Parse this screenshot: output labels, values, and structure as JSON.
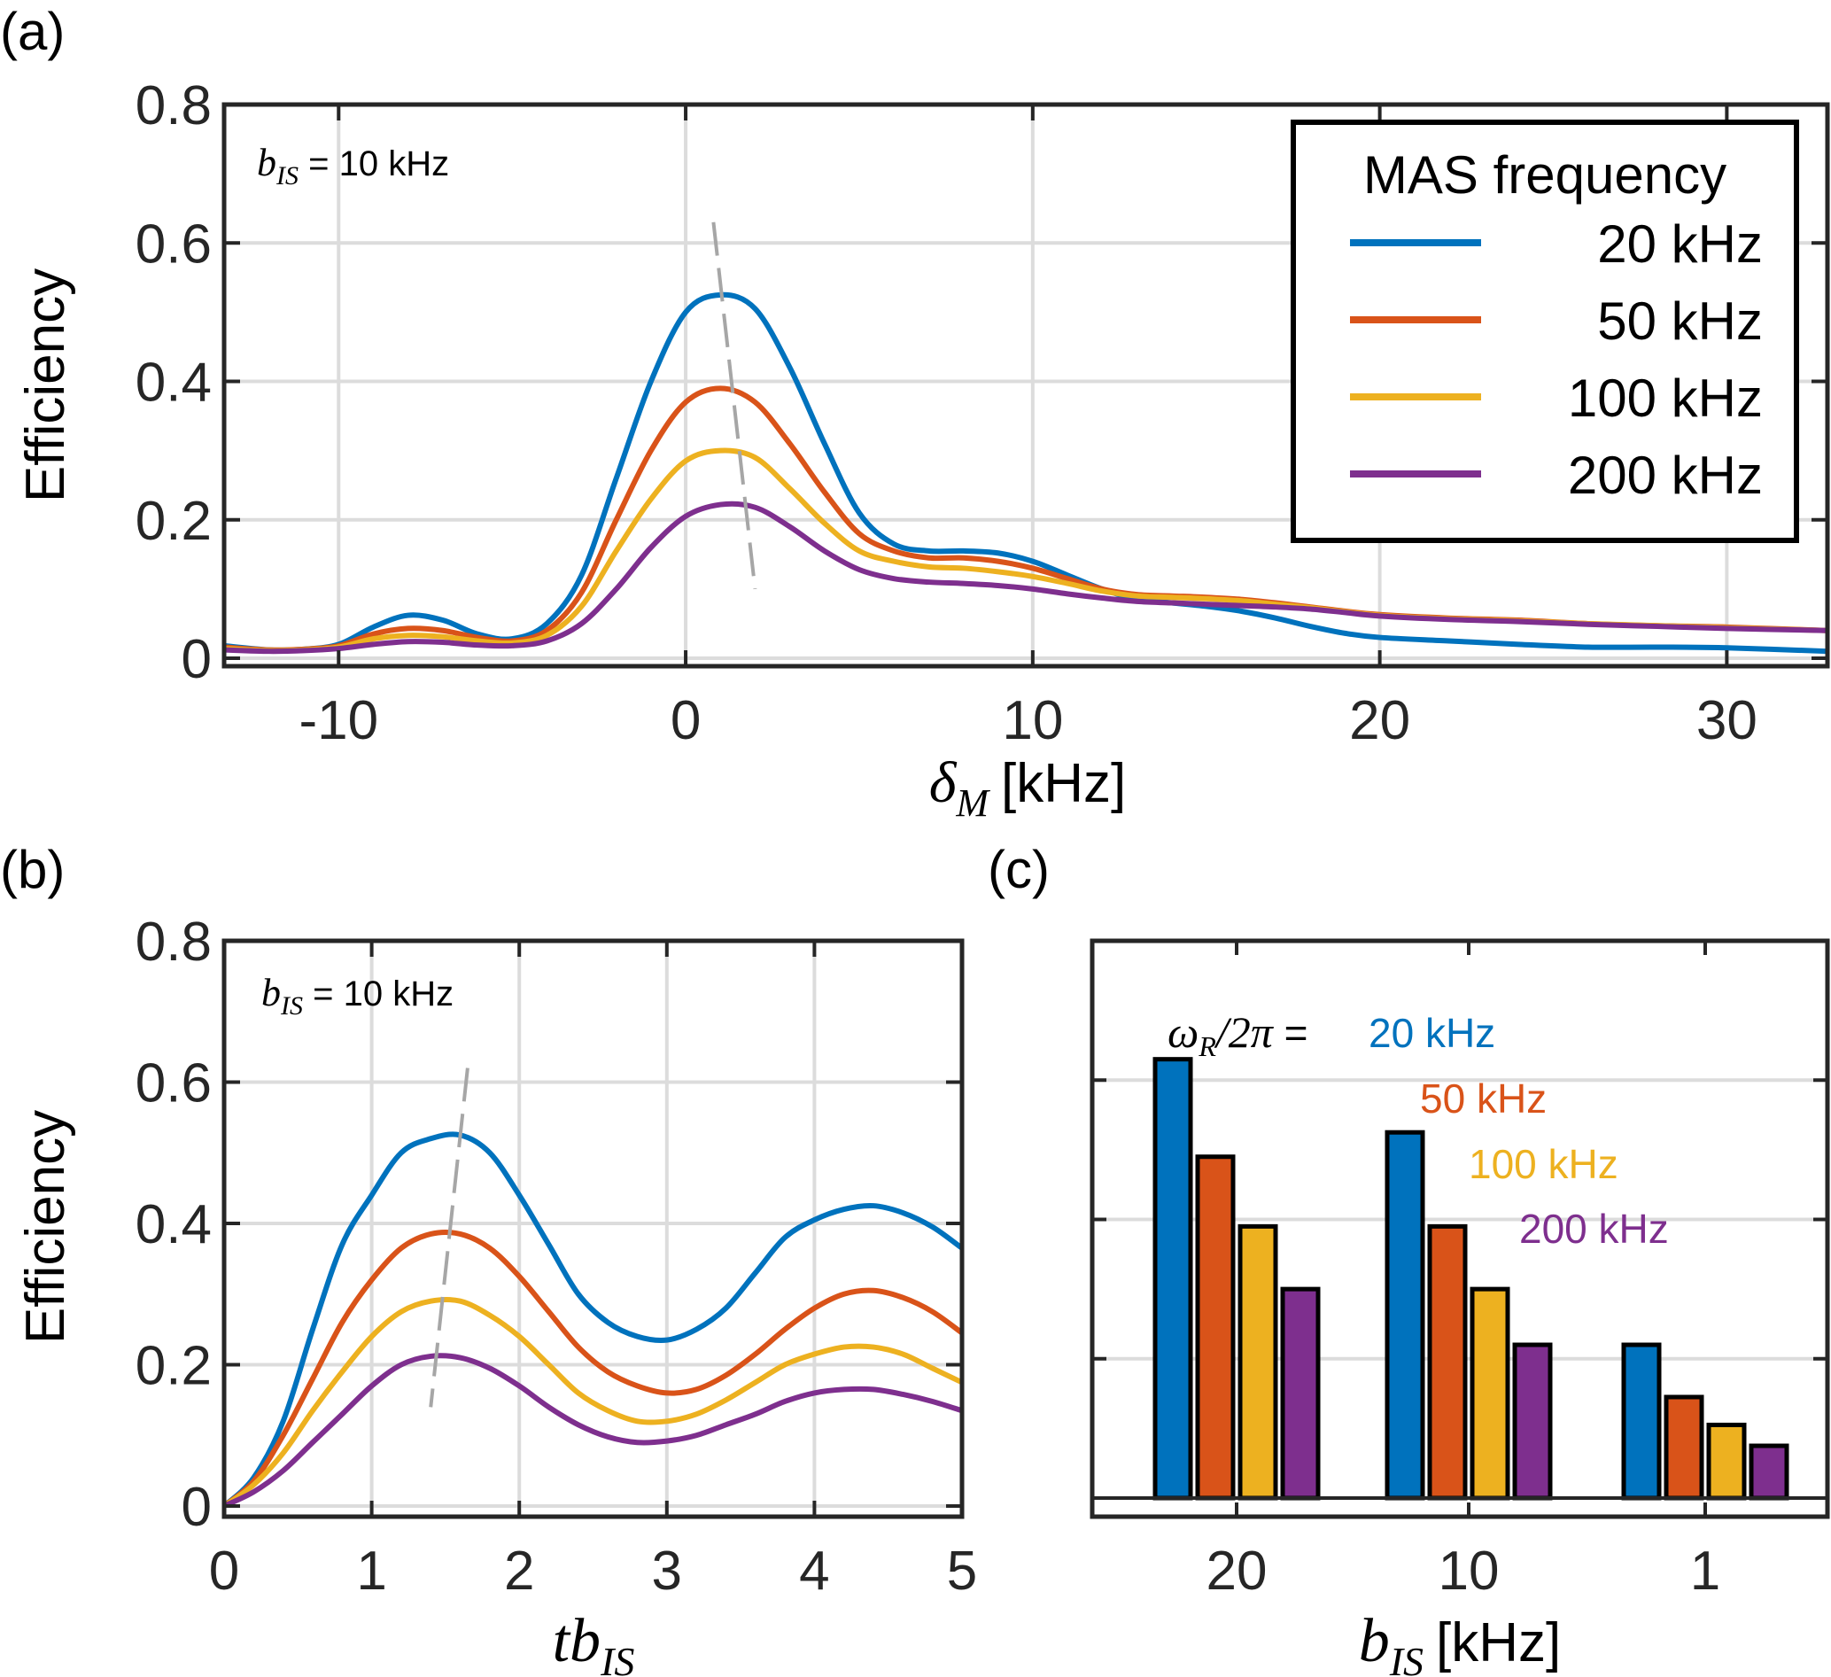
{
  "colors": {
    "20kHz": "#0072BD",
    "50kHz": "#D95319",
    "100kHz": "#EDB120",
    "200kHz": "#7E2F8E",
    "grid": "#dcdcdc",
    "axis": "#262626",
    "guide": "#a6a6a6"
  },
  "chart_data": [
    {
      "id": "a",
      "type": "line",
      "panel_label": "(a)",
      "title": "",
      "xlabel_math": "δ",
      "xlabel_sub": "M",
      "xlabel_unit": "[kHz]",
      "ylabel": "Efficiency",
      "xlim": [
        -13.3,
        32.9
      ],
      "ylim": [
        0,
        0.8
      ],
      "xticks": [
        -10,
        0,
        10,
        20,
        30
      ],
      "xtick_labels": [
        "-10",
        "0",
        "10",
        "20",
        "30"
      ],
      "yticks": [
        0,
        0.2,
        0.4,
        0.6,
        0.8
      ],
      "ytick_labels": [
        "0",
        "0.2",
        "0.4",
        "0.6",
        "0.8"
      ],
      "grid": true,
      "annotation": {
        "math": "b",
        "sub": "IS",
        "text": " = 10 kHz"
      },
      "guide_line": {
        "style": "dashed",
        "points": [
          [
            0.8,
            0.63
          ],
          [
            2.0,
            0.1
          ]
        ]
      },
      "legend": {
        "title": "MAS frequency",
        "placement": "top-right",
        "entries": [
          "20 kHz",
          "50 kHz",
          "100 kHz",
          "200 kHz"
        ]
      },
      "series": [
        {
          "name": "20 kHz",
          "color_key": "20kHz",
          "x": [
            -13.3,
            -12,
            -11,
            -10,
            -9,
            -8,
            -7,
            -6,
            -5,
            -4,
            -3,
            -2,
            -1,
            0,
            1,
            2,
            3,
            4,
            5,
            6,
            7,
            8,
            9,
            10,
            11,
            12,
            13,
            14,
            15,
            16,
            17,
            18,
            19,
            20,
            22,
            24,
            26,
            28,
            30,
            32.9
          ],
          "y": [
            0.018,
            0.012,
            0.013,
            0.02,
            0.045,
            0.062,
            0.055,
            0.035,
            0.028,
            0.05,
            0.12,
            0.26,
            0.4,
            0.5,
            0.525,
            0.505,
            0.42,
            0.31,
            0.21,
            0.165,
            0.155,
            0.155,
            0.152,
            0.14,
            0.12,
            0.1,
            0.085,
            0.08,
            0.075,
            0.068,
            0.058,
            0.046,
            0.036,
            0.03,
            0.025,
            0.02,
            0.016,
            0.016,
            0.015,
            0.01
          ]
        },
        {
          "name": "50 kHz",
          "color_key": "50kHz",
          "x": [
            -13.3,
            -12,
            -11,
            -10,
            -9,
            -8,
            -7,
            -6,
            -5,
            -4,
            -3,
            -2,
            -1,
            0,
            1,
            2,
            3,
            4,
            5,
            6,
            7,
            8,
            9,
            10,
            11,
            12,
            13,
            14,
            15,
            16,
            17,
            18,
            19,
            20,
            22,
            24,
            26,
            28,
            30,
            32.9
          ],
          "y": [
            0.016,
            0.012,
            0.013,
            0.018,
            0.035,
            0.043,
            0.04,
            0.03,
            0.025,
            0.04,
            0.095,
            0.2,
            0.3,
            0.37,
            0.39,
            0.37,
            0.31,
            0.24,
            0.18,
            0.155,
            0.145,
            0.145,
            0.14,
            0.13,
            0.115,
            0.1,
            0.092,
            0.09,
            0.088,
            0.085,
            0.08,
            0.074,
            0.068,
            0.063,
            0.058,
            0.055,
            0.05,
            0.047,
            0.045,
            0.04
          ]
        },
        {
          "name": "100 kHz",
          "color_key": "100kHz",
          "x": [
            -13.3,
            -12,
            -11,
            -10,
            -9,
            -8,
            -7,
            -6,
            -5,
            -4,
            -3,
            -2,
            -1,
            0,
            1,
            2,
            3,
            4,
            5,
            6,
            7,
            8,
            9,
            10,
            11,
            12,
            13,
            14,
            15,
            16,
            17,
            18,
            19,
            20,
            22,
            24,
            26,
            28,
            30,
            32.9
          ],
          "y": [
            0.014,
            0.011,
            0.012,
            0.016,
            0.028,
            0.033,
            0.031,
            0.025,
            0.022,
            0.033,
            0.075,
            0.155,
            0.23,
            0.285,
            0.3,
            0.29,
            0.245,
            0.195,
            0.155,
            0.14,
            0.132,
            0.13,
            0.125,
            0.118,
            0.108,
            0.097,
            0.09,
            0.088,
            0.086,
            0.083,
            0.078,
            0.073,
            0.067,
            0.062,
            0.057,
            0.054,
            0.05,
            0.047,
            0.044,
            0.04
          ]
        },
        {
          "name": "200 kHz",
          "color_key": "200kHz",
          "x": [
            -13.3,
            -12,
            -11,
            -10,
            -9,
            -8,
            -7,
            -6,
            -5,
            -4,
            -3,
            -2,
            -1,
            0,
            1,
            2,
            3,
            4,
            5,
            6,
            7,
            8,
            9,
            10,
            11,
            12,
            13,
            14,
            15,
            16,
            17,
            18,
            19,
            20,
            22,
            24,
            26,
            28,
            30,
            32.9
          ],
          "y": [
            0.012,
            0.01,
            0.011,
            0.014,
            0.02,
            0.024,
            0.023,
            0.019,
            0.018,
            0.025,
            0.05,
            0.1,
            0.16,
            0.205,
            0.222,
            0.218,
            0.19,
            0.155,
            0.128,
            0.115,
            0.11,
            0.108,
            0.105,
            0.1,
            0.093,
            0.087,
            0.082,
            0.08,
            0.078,
            0.076,
            0.074,
            0.071,
            0.066,
            0.061,
            0.056,
            0.053,
            0.049,
            0.046,
            0.043,
            0.04
          ]
        }
      ]
    },
    {
      "id": "b",
      "type": "line",
      "panel_label": "(b)",
      "title": "",
      "xlabel_math": "tb",
      "xlabel_sub": "IS",
      "ylabel": "Efficiency",
      "xlim": [
        0,
        5
      ],
      "ylim": [
        0,
        0.8
      ],
      "xticks": [
        0,
        1,
        2,
        3,
        4,
        5
      ],
      "xtick_labels": [
        "0",
        "1",
        "2",
        "3",
        "4",
        "5"
      ],
      "yticks": [
        0,
        0.2,
        0.4,
        0.6,
        0.8
      ],
      "ytick_labels": [
        "0",
        "0.2",
        "0.4",
        "0.6",
        "0.8"
      ],
      "grid": true,
      "annotation": {
        "math": "b",
        "sub": "IS",
        "text": " = 10 kHz"
      },
      "guide_line": {
        "style": "dashed",
        "points": [
          [
            1.65,
            0.62
          ],
          [
            1.4,
            0.14
          ]
        ]
      },
      "series": [
        {
          "name": "20 kHz",
          "color_key": "20kHz",
          "x": [
            0,
            0.2,
            0.4,
            0.6,
            0.8,
            1.0,
            1.2,
            1.4,
            1.6,
            1.8,
            2.0,
            2.2,
            2.4,
            2.6,
            2.8,
            3.0,
            3.2,
            3.4,
            3.6,
            3.8,
            4.0,
            4.2,
            4.4,
            4.6,
            4.8,
            5.0
          ],
          "y": [
            0,
            0.04,
            0.12,
            0.25,
            0.37,
            0.44,
            0.5,
            0.52,
            0.525,
            0.5,
            0.44,
            0.37,
            0.3,
            0.26,
            0.24,
            0.235,
            0.25,
            0.28,
            0.33,
            0.38,
            0.405,
            0.42,
            0.425,
            0.415,
            0.395,
            0.365
          ]
        },
        {
          "name": "50 kHz",
          "color_key": "50kHz",
          "x": [
            0,
            0.2,
            0.4,
            0.6,
            0.8,
            1.0,
            1.2,
            1.4,
            1.6,
            1.8,
            2.0,
            2.2,
            2.4,
            2.6,
            2.8,
            3.0,
            3.2,
            3.4,
            3.6,
            3.8,
            4.0,
            4.2,
            4.4,
            4.6,
            4.8,
            5.0
          ],
          "y": [
            0,
            0.035,
            0.1,
            0.18,
            0.26,
            0.32,
            0.365,
            0.385,
            0.385,
            0.365,
            0.325,
            0.275,
            0.225,
            0.19,
            0.17,
            0.16,
            0.165,
            0.185,
            0.215,
            0.25,
            0.28,
            0.3,
            0.305,
            0.295,
            0.275,
            0.245
          ]
        },
        {
          "name": "100 kHz",
          "color_key": "100kHz",
          "x": [
            0,
            0.2,
            0.4,
            0.6,
            0.8,
            1.0,
            1.2,
            1.4,
            1.6,
            1.8,
            2.0,
            2.2,
            2.4,
            2.6,
            2.8,
            3.0,
            3.2,
            3.4,
            3.6,
            3.8,
            4.0,
            4.2,
            4.4,
            4.6,
            4.8,
            5.0
          ],
          "y": [
            0,
            0.03,
            0.075,
            0.135,
            0.19,
            0.24,
            0.275,
            0.29,
            0.29,
            0.27,
            0.24,
            0.2,
            0.16,
            0.135,
            0.12,
            0.12,
            0.13,
            0.15,
            0.175,
            0.2,
            0.215,
            0.225,
            0.225,
            0.215,
            0.195,
            0.175
          ]
        },
        {
          "name": "200 kHz",
          "color_key": "200kHz",
          "x": [
            0,
            0.2,
            0.4,
            0.6,
            0.8,
            1.0,
            1.2,
            1.4,
            1.6,
            1.8,
            2.0,
            2.2,
            2.4,
            2.6,
            2.8,
            3.0,
            3.2,
            3.4,
            3.6,
            3.8,
            4.0,
            4.2,
            4.4,
            4.6,
            4.8,
            5.0
          ],
          "y": [
            0,
            0.02,
            0.05,
            0.09,
            0.13,
            0.17,
            0.2,
            0.212,
            0.21,
            0.195,
            0.17,
            0.14,
            0.115,
            0.098,
            0.09,
            0.092,
            0.1,
            0.115,
            0.13,
            0.148,
            0.16,
            0.165,
            0.165,
            0.158,
            0.148,
            0.135
          ]
        }
      ]
    },
    {
      "id": "c",
      "type": "bar",
      "panel_label": "(c)",
      "title": "",
      "xlabel_math": "b",
      "xlabel_sub": "IS",
      "xlabel_unit": "[kHz]",
      "ylabel": "",
      "ylim": [
        0,
        0.8
      ],
      "yticks": [
        0,
        0.2,
        0.4,
        0.6,
        0.8
      ],
      "categories": [
        "20",
        "10",
        "1"
      ],
      "grid": true,
      "annotation": {
        "math": "ω",
        "sub": "R",
        "text_math": "/2π",
        "eq": " = ",
        "entries": [
          "20 kHz",
          "50 kHz",
          "100 kHz",
          "200 kHz"
        ]
      },
      "series": [
        {
          "name": "20 kHz",
          "color_key": "20kHz",
          "values": [
            0.63,
            0.525,
            0.22
          ]
        },
        {
          "name": "50 kHz",
          "color_key": "50kHz",
          "values": [
            0.49,
            0.39,
            0.145
          ]
        },
        {
          "name": "100 kHz",
          "color_key": "100kHz",
          "values": [
            0.39,
            0.3,
            0.105
          ]
        },
        {
          "name": "200 kHz",
          "color_key": "200kHz",
          "values": [
            0.3,
            0.22,
            0.075
          ]
        }
      ]
    }
  ]
}
